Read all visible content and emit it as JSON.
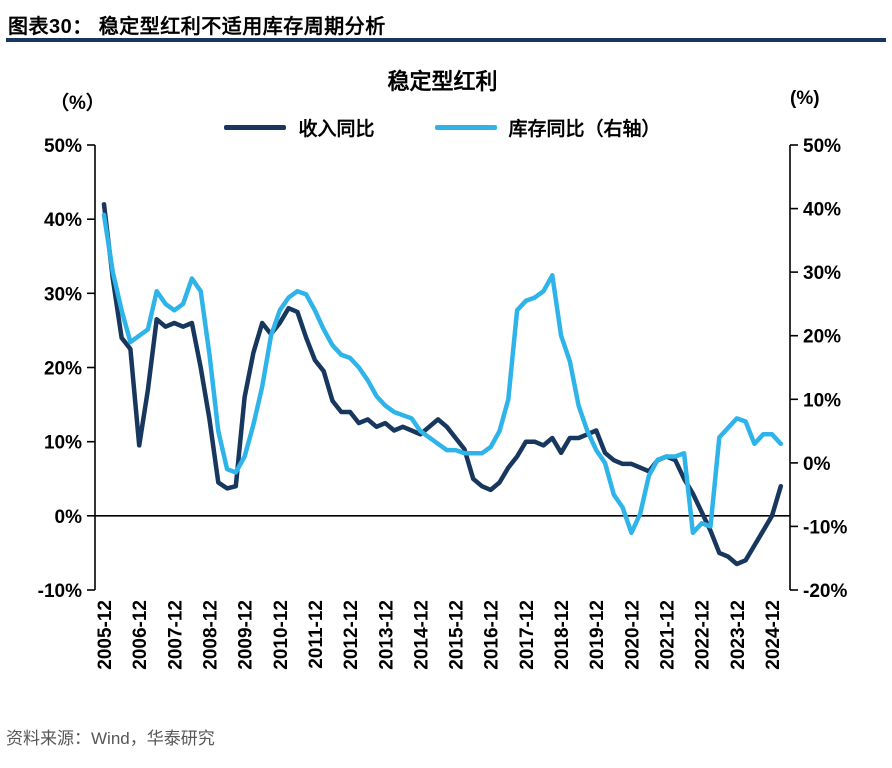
{
  "header": {
    "title": "图表30：  稳定型红利不适用库存周期分析"
  },
  "footer": {
    "source": "资料来源：Wind，华泰研究"
  },
  "chart": {
    "title": "稳定型红利",
    "left_axis_unit": "（%）",
    "right_axis_unit": "(%)",
    "legend": [
      {
        "label": "收入同比",
        "color": "#17375E"
      },
      {
        "label": "库存同比（右轴）",
        "color": "#2FB4E9"
      }
    ]
  },
  "chart_data": {
    "type": "line",
    "title": "稳定型红利",
    "x_start": "2005-12",
    "freq": "quarterly",
    "points_per_label": 4,
    "grid": false,
    "legend_position": "top",
    "x_labels": [
      "2005-12",
      "2006-12",
      "2007-12",
      "2008-12",
      "2009-12",
      "2010-12",
      "2011-12",
      "2012-12",
      "2013-12",
      "2014-12",
      "2015-12",
      "2016-12",
      "2017-12",
      "2018-12",
      "2019-12",
      "2020-12",
      "2021-12",
      "2022-12",
      "2023-12",
      "2024-12"
    ],
    "left_axis": {
      "min": -10,
      "max": 50,
      "tick_values": [
        50,
        40,
        30,
        20,
        10,
        0,
        -10
      ],
      "tick_labels": [
        "50%",
        "40%",
        "30%",
        "20%",
        "10%",
        "0%",
        "-10%"
      ]
    },
    "right_axis": {
      "min": -20,
      "max": 50,
      "tick_values": [
        50,
        40,
        30,
        20,
        10,
        0,
        -10,
        -20
      ],
      "tick_labels": [
        "50%",
        "40%",
        "30%",
        "20%",
        "10%",
        "0%",
        "-10%",
        "-20%"
      ]
    },
    "series": [
      {
        "name": "收入同比",
        "axis": "left",
        "color": "#17375E",
        "values": [
          42,
          32,
          24,
          22.5,
          9.5,
          17,
          26.5,
          25.5,
          26,
          25.5,
          26,
          20,
          13,
          4.5,
          3.7,
          4,
          16,
          22,
          26,
          24.5,
          26,
          28,
          27.5,
          24,
          21,
          19.5,
          15.5,
          14,
          14,
          12.5,
          13,
          12,
          12.5,
          11.5,
          12,
          11.5,
          11,
          12,
          13,
          12,
          10.5,
          9,
          5,
          4,
          3.5,
          4.5,
          6.5,
          8,
          10,
          10,
          9.5,
          10.5,
          8.5,
          10.5,
          10.5,
          11,
          11.5,
          8.5,
          7.5,
          7,
          7,
          6.5,
          6,
          7.5,
          8,
          7.5,
          5,
          3,
          0.5,
          -2,
          -5,
          -5.5,
          -6.5,
          -6,
          -4,
          -2,
          0,
          4
        ]
      },
      {
        "name": "库存同比（右轴）",
        "axis": "right",
        "color": "#2FB4E9",
        "values": [
          39,
          30,
          24,
          19,
          20,
          21,
          27,
          25,
          24,
          25,
          29,
          27,
          17,
          5,
          -1,
          -1.5,
          1,
          6,
          12,
          20,
          24,
          26,
          27,
          26.5,
          24,
          21,
          18.5,
          17,
          16.5,
          15,
          13,
          10.5,
          9,
          8,
          7.5,
          7,
          5,
          4,
          3,
          2,
          2,
          1.5,
          1.5,
          1.5,
          2.5,
          5,
          10,
          24,
          25.5,
          26,
          27,
          29.5,
          20,
          16,
          9,
          5,
          2,
          0,
          -5,
          -7,
          -11,
          -8,
          -2,
          0.5,
          1,
          1,
          1.5,
          -11,
          -9.5,
          -10,
          4,
          5.5,
          7,
          6.5,
          3,
          4.5,
          4.5,
          3
        ]
      }
    ]
  }
}
